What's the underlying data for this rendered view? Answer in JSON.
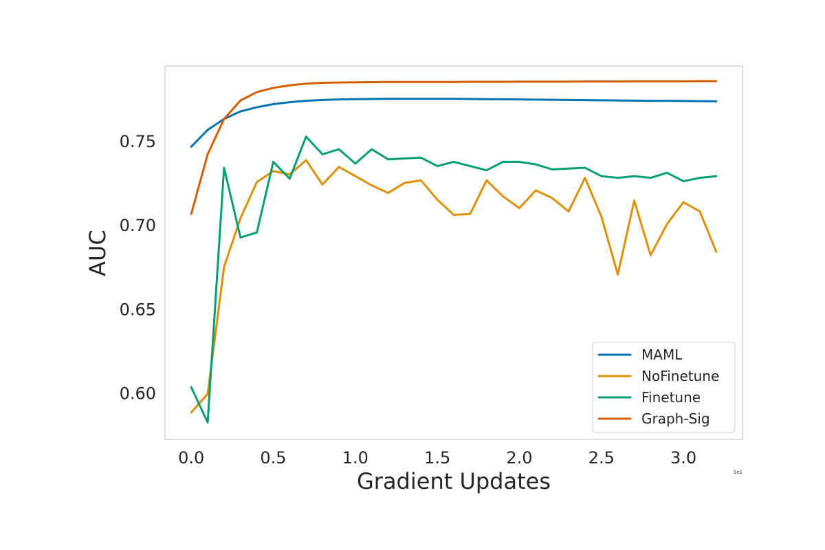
{
  "chart_data": {
    "type": "line",
    "xlabel": "Gradient Updates",
    "ylabel": "AUC",
    "x_offset_label": "1e1",
    "xlim": [
      -0.16,
      3.36
    ],
    "ylim": [
      0.5725,
      0.7945
    ],
    "xticks": [
      0.0,
      0.5,
      1.0,
      1.5,
      2.0,
      2.5,
      3.0
    ],
    "xtick_labels": [
      "0.0",
      "0.5",
      "1.0",
      "1.5",
      "2.0",
      "2.5",
      "3.0"
    ],
    "yticks": [
      0.6,
      0.65,
      0.7,
      0.75
    ],
    "ytick_labels": [
      "0.60",
      "0.65",
      "0.70",
      "0.75"
    ],
    "grid": false,
    "legend_position": "lower-right",
    "x": [
      0.0,
      0.1,
      0.2,
      0.3,
      0.4,
      0.5,
      0.6,
      0.7,
      0.8,
      0.9,
      1.0,
      1.1,
      1.2,
      1.3,
      1.4,
      1.5,
      1.6,
      1.7,
      1.8,
      1.9,
      2.0,
      2.1,
      2.2,
      2.3,
      2.4,
      2.5,
      2.6,
      2.7,
      2.8,
      2.9,
      3.0,
      3.1,
      3.2
    ],
    "series": [
      {
        "name": "MAML",
        "color": "#0173b2",
        "values": [
          0.7465,
          0.7565,
          0.763,
          0.7675,
          0.77,
          0.7718,
          0.773,
          0.7738,
          0.7743,
          0.7746,
          0.7748,
          0.7749,
          0.775,
          0.775,
          0.775,
          0.775,
          0.775,
          0.7749,
          0.7748,
          0.7747,
          0.7746,
          0.7745,
          0.7744,
          0.7743,
          0.7742,
          0.7741,
          0.774,
          0.7739,
          0.7738,
          0.7738,
          0.7737,
          0.7736,
          0.7735
        ]
      },
      {
        "name": "NoFinetune",
        "color": "#de8f05",
        "values": [
          0.5885,
          0.5995,
          0.675,
          0.704,
          0.7255,
          0.732,
          0.73,
          0.7385,
          0.724,
          0.7345,
          0.729,
          0.7235,
          0.719,
          0.725,
          0.7265,
          0.715,
          0.706,
          0.7065,
          0.7265,
          0.717,
          0.71,
          0.7205,
          0.716,
          0.708,
          0.728,
          0.705,
          0.6705,
          0.7145,
          0.682,
          0.7005,
          0.7135,
          0.708,
          0.684
        ]
      },
      {
        "name": "Finetune",
        "color": "#029e73",
        "values": [
          0.6035,
          0.5825,
          0.734,
          0.6925,
          0.6955,
          0.7375,
          0.7275,
          0.7525,
          0.742,
          0.745,
          0.7365,
          0.745,
          0.739,
          0.7395,
          0.74,
          0.735,
          0.7375,
          0.735,
          0.7325,
          0.7375,
          0.7375,
          0.736,
          0.733,
          0.7335,
          0.734,
          0.729,
          0.728,
          0.729,
          0.728,
          0.731,
          0.726,
          0.728,
          0.729
        ]
      },
      {
        "name": "Graph-Sig",
        "color": "#d55e00",
        "values": [
          0.7065,
          0.742,
          0.763,
          0.774,
          0.779,
          0.7815,
          0.783,
          0.784,
          0.7845,
          0.7847,
          0.7848,
          0.7849,
          0.785,
          0.785,
          0.785,
          0.785,
          0.785,
          0.7851,
          0.7851,
          0.7851,
          0.7852,
          0.7852,
          0.7852,
          0.7852,
          0.7853,
          0.7853,
          0.7853,
          0.7854,
          0.7854,
          0.7854,
          0.7854,
          0.7855,
          0.7855
        ]
      }
    ]
  }
}
